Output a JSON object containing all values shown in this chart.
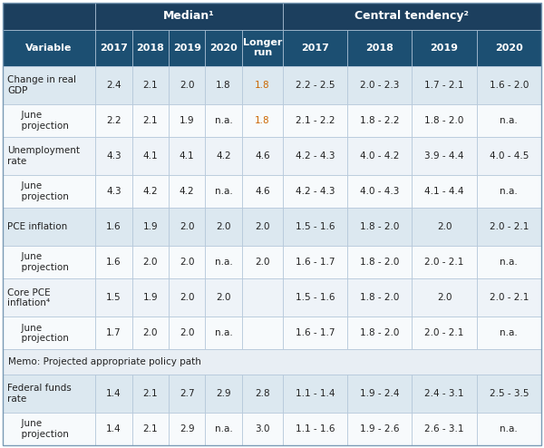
{
  "header_bg": "#1c3f5e",
  "col_header_bg": "#1c4f72",
  "odd_row_bg": "#dce8f0",
  "even_row_bg": "#eef3f8",
  "white_row_bg": "#f7fafc",
  "memo_row_bg": "#e8eef4",
  "header_text_color": "#ffffff",
  "body_text_color": "#222222",
  "orange_text_color": "#cc6600",
  "border_color": "#b0c4d8",
  "col_headers": [
    "Variable",
    "2017",
    "2018",
    "2019",
    "2020",
    "Longer\nrun",
    "2017",
    "2018",
    "2019",
    "2020"
  ],
  "rows": [
    {
      "label": "Change in real\nGDP",
      "type": "main",
      "values": [
        "2.4",
        "2.1",
        "2.0",
        "1.8",
        "1.8",
        "2.2 - 2.5",
        "2.0 - 2.3",
        "1.7 - 2.1",
        "1.6 - 2.0"
      ],
      "orange_cols": [
        4
      ]
    },
    {
      "label": "June\nprojection",
      "type": "sub",
      "values": [
        "2.2",
        "2.1",
        "1.9",
        "n.a.",
        "1.8",
        "2.1 - 2.2",
        "1.8 - 2.2",
        "1.8 - 2.0",
        "n.a."
      ],
      "orange_cols": [
        4
      ]
    },
    {
      "label": "Unemployment\nrate",
      "type": "main",
      "values": [
        "4.3",
        "4.1",
        "4.1",
        "4.2",
        "4.6",
        "4.2 - 4.3",
        "4.0 - 4.2",
        "3.9 - 4.4",
        "4.0 - 4.5"
      ],
      "orange_cols": []
    },
    {
      "label": "June\nprojection",
      "type": "sub",
      "values": [
        "4.3",
        "4.2",
        "4.2",
        "n.a.",
        "4.6",
        "4.2 - 4.3",
        "4.0 - 4.3",
        "4.1 - 4.4",
        "n.a."
      ],
      "orange_cols": []
    },
    {
      "label": "PCE inflation",
      "type": "main",
      "values": [
        "1.6",
        "1.9",
        "2.0",
        "2.0",
        "2.0",
        "1.5 - 1.6",
        "1.8 - 2.0",
        "2.0",
        "2.0 - 2.1"
      ],
      "orange_cols": []
    },
    {
      "label": "June\nprojection",
      "type": "sub",
      "values": [
        "1.6",
        "2.0",
        "2.0",
        "n.a.",
        "2.0",
        "1.6 - 1.7",
        "1.8 - 2.0",
        "2.0 - 2.1",
        "n.a."
      ],
      "orange_cols": []
    },
    {
      "label": "Core PCE\ninflation⁴",
      "type": "main",
      "values": [
        "1.5",
        "1.9",
        "2.0",
        "2.0",
        "",
        "1.5 - 1.6",
        "1.8 - 2.0",
        "2.0",
        "2.0 - 2.1"
      ],
      "orange_cols": []
    },
    {
      "label": "June\nprojection",
      "type": "sub",
      "values": [
        "1.7",
        "2.0",
        "2.0",
        "n.a.",
        "",
        "1.6 - 1.7",
        "1.8 - 2.0",
        "2.0 - 2.1",
        "n.a."
      ],
      "orange_cols": []
    },
    {
      "label": "Memo: Projected appropriate policy path",
      "type": "memo",
      "values": [],
      "orange_cols": []
    },
    {
      "label": "Federal funds\nrate",
      "type": "main",
      "values": [
        "1.4",
        "2.1",
        "2.7",
        "2.9",
        "2.8",
        "1.1 - 1.4",
        "1.9 - 2.4",
        "2.4 - 3.1",
        "2.5 - 3.5"
      ],
      "orange_cols": []
    },
    {
      "label": "June\nprojection",
      "type": "sub",
      "values": [
        "1.4",
        "2.1",
        "2.9",
        "n.a.",
        "3.0",
        "1.1 - 1.6",
        "1.9 - 2.6",
        "2.6 - 3.1",
        "n.a."
      ],
      "orange_cols": []
    }
  ],
  "figsize": [
    6.0,
    4.94
  ],
  "dpi": 100
}
